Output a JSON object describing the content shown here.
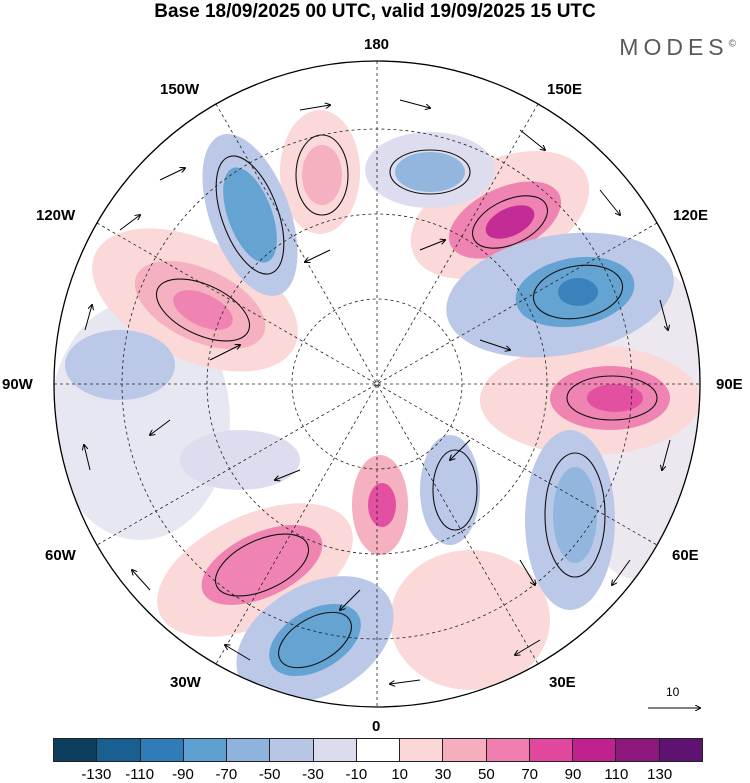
{
  "title": "Base 18/09/2025 00 UTC, valid 19/09/2025 15 UTC",
  "brand": "MODES",
  "brand_mark": "©",
  "longitude_labels": {
    "top": "180",
    "bottom": "0",
    "left": "90W",
    "right": "90E",
    "upper_left_1": "150W",
    "upper_left_2": "120W",
    "lower_left_1": "60W",
    "lower_left_2": "30W",
    "upper_right_1": "150E",
    "upper_right_2": "120E",
    "lower_right_1": "60E",
    "lower_right_2": "30E"
  },
  "vector_reference": "10",
  "colorbar": {
    "colors": [
      "#0d3e5e",
      "#1a5f92",
      "#2f7cb8",
      "#5d9fd0",
      "#8eb3dd",
      "#b8c6e6",
      "#dcdcef",
      "#ffffff",
      "#fbd7d7",
      "#f6adbd",
      "#ef7eae",
      "#e2479e",
      "#c0218f",
      "#8d187d",
      "#5e1272"
    ],
    "tick_labels": [
      "-130",
      "-110",
      "-90",
      "-70",
      "-50",
      "-30",
      "-10",
      "10",
      "30",
      "50",
      "70",
      "90",
      "110",
      "130"
    ]
  },
  "colors": {
    "land": "#c8c8c8",
    "outline": "#111111"
  }
}
